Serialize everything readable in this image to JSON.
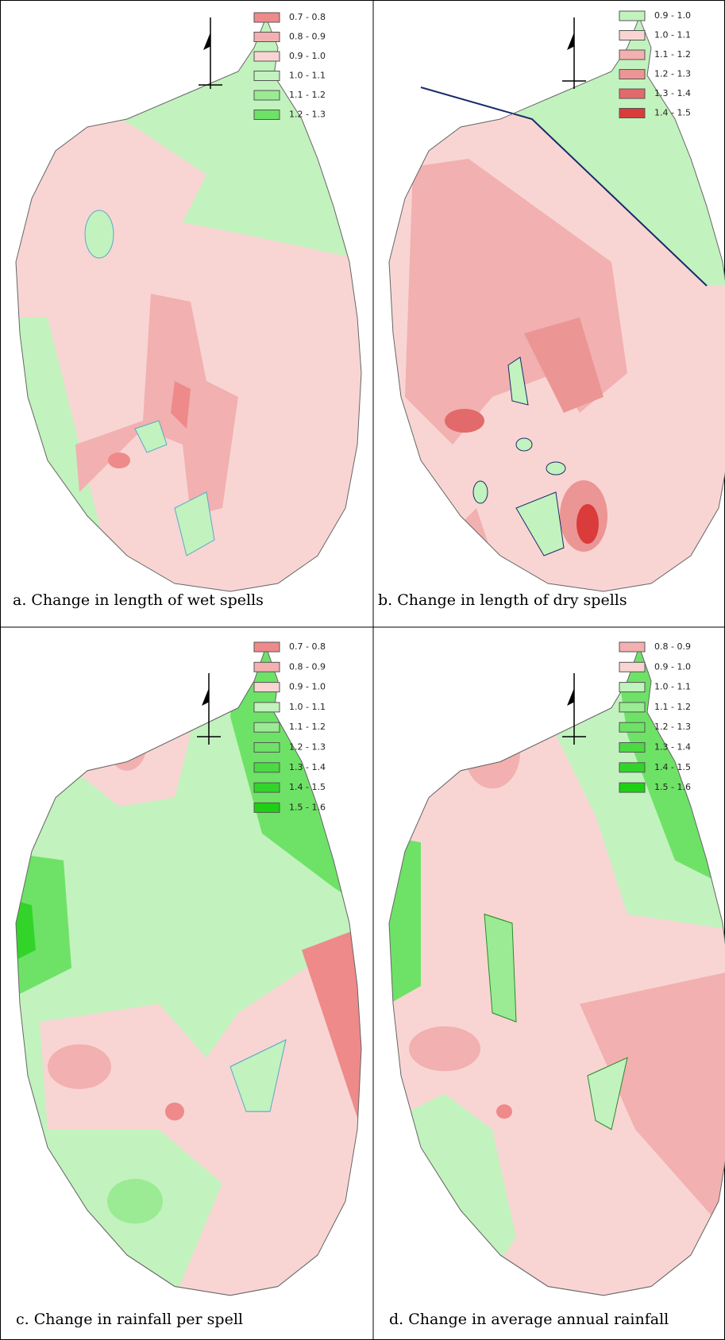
{
  "panels": [
    {
      "caption": "a. Change in length of wet spells",
      "legend": [
        {
          "label": "0.7 - 0.8",
          "color": "#ee8a8a"
        },
        {
          "label": "0.8 - 0.9",
          "color": "#f2b0b0"
        },
        {
          "label": "0.9 - 1.0",
          "color": "#f8d5d3"
        },
        {
          "label": "1.0 - 1.1",
          "color": "#c2f2be"
        },
        {
          "label": "1.1 - 1.2",
          "color": "#9aeb94"
        },
        {
          "label": "1.2 - 1.3",
          "color": "#6ee267"
        }
      ]
    },
    {
      "caption": "b. Change in length of dry spells",
      "legend": [
        {
          "label": "0.9 - 1.0",
          "color": "#c2f2be"
        },
        {
          "label": "1.0 - 1.1",
          "color": "#f8d5d3"
        },
        {
          "label": "1.1 - 1.2",
          "color": "#f2b0b0"
        },
        {
          "label": "1.2 - 1.3",
          "color": "#eb9595"
        },
        {
          "label": "1.3 - 1.4",
          "color": "#e36a6a"
        },
        {
          "label": "1.4 - 1.5",
          "color": "#da3b3b"
        }
      ]
    },
    {
      "caption": "c. Change in rainfall per spell",
      "legend": [
        {
          "label": "0.7 - 0.8",
          "color": "#ee8a8a"
        },
        {
          "label": "0.8 - 0.9",
          "color": "#f2b0b0"
        },
        {
          "label": "0.9 - 1.0",
          "color": "#f8d5d3"
        },
        {
          "label": "1.0 - 1.1",
          "color": "#c2f2be"
        },
        {
          "label": "1.1 - 1.2",
          "color": "#9aeb94"
        },
        {
          "label": "1.2 - 1.3",
          "color": "#6ee267"
        },
        {
          "label": "1.3 - 1.4",
          "color": "#4cd944"
        },
        {
          "label": "1.4 - 1.5",
          "color": "#33d42a"
        },
        {
          "label": "1.5 - 1.6",
          "color": "#1ed014"
        }
      ]
    },
    {
      "caption": "d. Change in average annual rainfall",
      "legend": [
        {
          "label": "0.8 - 0.9",
          "color": "#f2b0b0"
        },
        {
          "label": "0.9 - 1.0",
          "color": "#f8d5d3"
        },
        {
          "label": "1.0 - 1.1",
          "color": "#c2f2be"
        },
        {
          "label": "1.1 - 1.2",
          "color": "#9aeb94"
        },
        {
          "label": "1.2 - 1.3",
          "color": "#6ee267"
        },
        {
          "label": "1.3 - 1.4",
          "color": "#4cd944"
        },
        {
          "label": "1.4 - 1.5",
          "color": "#33d42a"
        },
        {
          "label": "1.5 - 1.6",
          "color": "#1ed014"
        }
      ]
    }
  ]
}
